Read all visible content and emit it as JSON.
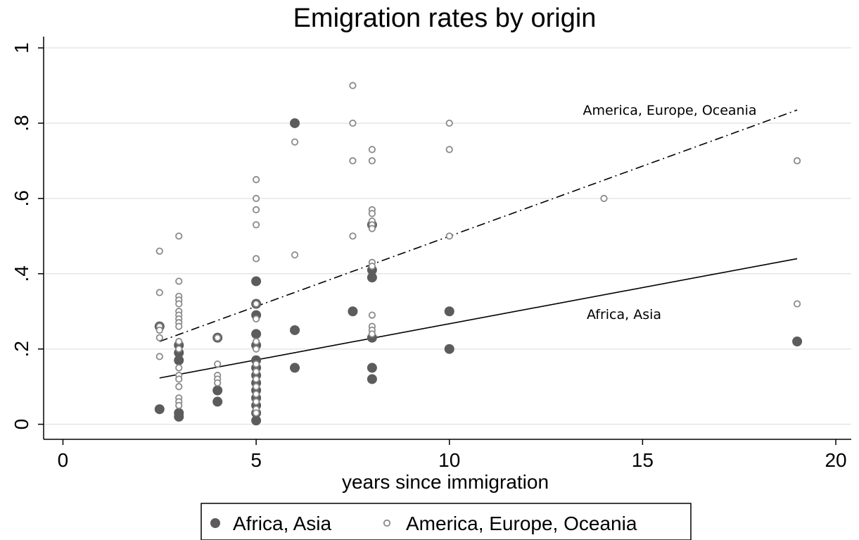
{
  "chart_data": {
    "type": "scatter",
    "title": "Emigration rates by origin",
    "xlabel": "years since immigration",
    "ylabel": "",
    "xlim": [
      -0.5,
      20.4
    ],
    "ylim": [
      -0.04,
      1.03
    ],
    "xticks": [
      0,
      5,
      10,
      15,
      20
    ],
    "xtick_labels": [
      "0",
      "5",
      "10",
      "15",
      "20"
    ],
    "yticks": [
      0,
      0.2,
      0.4,
      0.6,
      0.8,
      1
    ],
    "ytick_labels": [
      "0",
      ".2",
      ".4",
      ".6",
      ".8",
      "1"
    ],
    "grid": true,
    "legend": {
      "position": "bottom",
      "entries": [
        "Africa, Asia",
        "America, Europe, Oceania"
      ]
    },
    "annotations": [
      {
        "text": "America, Europe, Oceania",
        "x": 16.1,
        "y": 0.84
      },
      {
        "text": "Africa, Asia",
        "x": 14.8,
        "y": 0.29
      }
    ],
    "series": [
      {
        "name": "Africa, Asia",
        "marker": "filled-circle",
        "color": "#5c5c5c",
        "points": [
          [
            2.5,
            0.26
          ],
          [
            2.5,
            0.04
          ],
          [
            3,
            0.21
          ],
          [
            3,
            0.19
          ],
          [
            3,
            0.17
          ],
          [
            3,
            0.03
          ],
          [
            3,
            0.02
          ],
          [
            4,
            0.23
          ],
          [
            4,
            0.09
          ],
          [
            4,
            0.06
          ],
          [
            5,
            0.38
          ],
          [
            5,
            0.32
          ],
          [
            5,
            0.29
          ],
          [
            5,
            0.24
          ],
          [
            5,
            0.21
          ],
          [
            5,
            0.17
          ],
          [
            5,
            0.15
          ],
          [
            5,
            0.13
          ],
          [
            5,
            0.11
          ],
          [
            5,
            0.09
          ],
          [
            5,
            0.07
          ],
          [
            5,
            0.05
          ],
          [
            5,
            0.03
          ],
          [
            5,
            0.01
          ],
          [
            6,
            0.8
          ],
          [
            6,
            0.25
          ],
          [
            6,
            0.15
          ],
          [
            7.5,
            0.3
          ],
          [
            8,
            0.53
          ],
          [
            8,
            0.41
          ],
          [
            8,
            0.39
          ],
          [
            8,
            0.23
          ],
          [
            8,
            0.15
          ],
          [
            8,
            0.12
          ],
          [
            10,
            0.3
          ],
          [
            10,
            0.2
          ],
          [
            19,
            0.22
          ]
        ],
        "fit": {
          "style": "solid",
          "x": [
            2.5,
            19
          ],
          "y": [
            0.123,
            0.44
          ]
        }
      },
      {
        "name": "America, Europe, Oceania",
        "marker": "hollow-circle",
        "color": "#8a8a8a",
        "points": [
          [
            2.5,
            0.46
          ],
          [
            2.5,
            0.35
          ],
          [
            2.5,
            0.26
          ],
          [
            2.5,
            0.25
          ],
          [
            2.5,
            0.23
          ],
          [
            2.5,
            0.18
          ],
          [
            3,
            0.5
          ],
          [
            3,
            0.38
          ],
          [
            3,
            0.34
          ],
          [
            3,
            0.33
          ],
          [
            3,
            0.32
          ],
          [
            3,
            0.3
          ],
          [
            3,
            0.29
          ],
          [
            3,
            0.28
          ],
          [
            3,
            0.27
          ],
          [
            3,
            0.26
          ],
          [
            3,
            0.22
          ],
          [
            3,
            0.2
          ],
          [
            3,
            0.15
          ],
          [
            3,
            0.13
          ],
          [
            3,
            0.12
          ],
          [
            3,
            0.1
          ],
          [
            3,
            0.07
          ],
          [
            3,
            0.06
          ],
          [
            3,
            0.05
          ],
          [
            4,
            0.23
          ],
          [
            4,
            0.16
          ],
          [
            4,
            0.13
          ],
          [
            4,
            0.12
          ],
          [
            4,
            0.11
          ],
          [
            5,
            0.65
          ],
          [
            5,
            0.6
          ],
          [
            5,
            0.57
          ],
          [
            5,
            0.53
          ],
          [
            5,
            0.44
          ],
          [
            5,
            0.32
          ],
          [
            5,
            0.28
          ],
          [
            5,
            0.22
          ],
          [
            5,
            0.2
          ],
          [
            5,
            0.16
          ],
          [
            5,
            0.14
          ],
          [
            5,
            0.12
          ],
          [
            5,
            0.1
          ],
          [
            5,
            0.08
          ],
          [
            5,
            0.06
          ],
          [
            5,
            0.04
          ],
          [
            5,
            0.03
          ],
          [
            6,
            0.75
          ],
          [
            6,
            0.45
          ],
          [
            7.5,
            0.9
          ],
          [
            7.5,
            0.8
          ],
          [
            7.5,
            0.7
          ],
          [
            7.5,
            0.5
          ],
          [
            8,
            0.73
          ],
          [
            8,
            0.7
          ],
          [
            8,
            0.57
          ],
          [
            8,
            0.56
          ],
          [
            8,
            0.54
          ],
          [
            8,
            0.53
          ],
          [
            8,
            0.52
          ],
          [
            8,
            0.43
          ],
          [
            8,
            0.42
          ],
          [
            8,
            0.29
          ],
          [
            8,
            0.26
          ],
          [
            8,
            0.25
          ],
          [
            8,
            0.24
          ],
          [
            10,
            0.8
          ],
          [
            10,
            0.73
          ],
          [
            10,
            0.5
          ],
          [
            14,
            0.6
          ],
          [
            19,
            0.7
          ],
          [
            19,
            0.32
          ]
        ],
        "fit": {
          "style": "dash-dot",
          "x": [
            2.5,
            19
          ],
          "y": [
            0.22,
            0.835
          ]
        }
      }
    ]
  }
}
